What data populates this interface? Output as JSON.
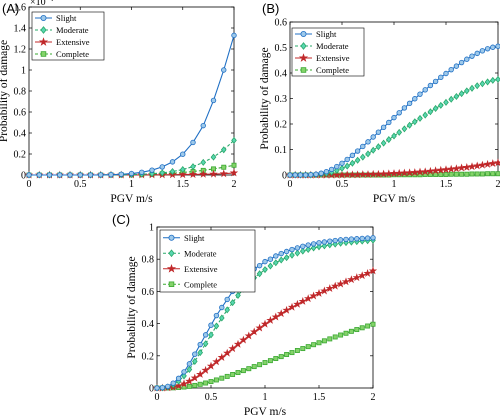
{
  "chart_data": [
    {
      "panel": "(A)",
      "type": "line",
      "xlabel": "PGV  m/s",
      "ylabel": "Probability of damage",
      "xlim": [
        0,
        2
      ],
      "ylim": [
        0,
        1.6
      ],
      "y_multiplier": "×10",
      "y_multiplier_exp": "-4",
      "xticks": [
        "0",
        "0.5",
        "1",
        "1.5",
        "2"
      ],
      "yticks": [
        "0",
        "0.2",
        "0.4",
        "0.6",
        "0.8",
        "1",
        "1.2",
        "1.4",
        "1.6"
      ],
      "x": [
        0,
        0.1,
        0.2,
        0.3,
        0.4,
        0.5,
        0.6,
        0.7,
        0.8,
        0.9,
        1.0,
        1.1,
        1.2,
        1.3,
        1.4,
        1.5,
        1.6,
        1.7,
        1.8,
        1.9,
        2.0
      ],
      "series": [
        {
          "name": "Slight",
          "marker": "circle",
          "color": "#1f6fc4",
          "fill": "#9ec9ea",
          "values": [
            0,
            0,
            0,
            0,
            0,
            0,
            0,
            0.001,
            0.003,
            0.007,
            0.014,
            0.026,
            0.046,
            0.077,
            0.125,
            0.198,
            0.31,
            0.47,
            0.71,
            1.0,
            1.33
          ]
        },
        {
          "name": "Moderate",
          "marker": "diamond",
          "color": "#2aa86a",
          "fill": "#58d6b0",
          "values": [
            0,
            0,
            0,
            0,
            0,
            0,
            0,
            0,
            0.001,
            0.002,
            0.004,
            0.007,
            0.012,
            0.02,
            0.033,
            0.052,
            0.08,
            0.12,
            0.17,
            0.24,
            0.33
          ]
        },
        {
          "name": "Extensive",
          "marker": "star",
          "color": "#c0282a",
          "fill": "#c0282a",
          "values": [
            0,
            0,
            0,
            0,
            0,
            0,
            0,
            0,
            0,
            0,
            0.001,
            0.001,
            0.002,
            0.002,
            0.003,
            0.004,
            0.005,
            0.007,
            0.009,
            0.012,
            0.02
          ]
        },
        {
          "name": "Complete",
          "marker": "square",
          "color": "#3aa832",
          "fill": "#84d36a",
          "values": [
            0,
            0,
            0,
            0,
            0,
            0,
            0,
            0,
            0.001,
            0.002,
            0.003,
            0.005,
            0.008,
            0.012,
            0.017,
            0.024,
            0.033,
            0.044,
            0.058,
            0.074,
            0.093
          ]
        }
      ]
    },
    {
      "panel": "(B)",
      "type": "line",
      "xlabel": "PGV  m/s",
      "ylabel": "Probability of damage",
      "xlim": [
        0,
        2
      ],
      "ylim": [
        0,
        0.6
      ],
      "xticks": [
        "0",
        "0.5",
        "1",
        "1.5",
        "2"
      ],
      "yticks": [
        "0",
        "0.1",
        "0.2",
        "0.3",
        "0.4",
        "0.5",
        "0.6"
      ],
      "x": [
        0,
        0.05,
        0.1,
        0.15,
        0.2,
        0.25,
        0.3,
        0.35,
        0.4,
        0.45,
        0.5,
        0.55,
        0.6,
        0.65,
        0.7,
        0.75,
        0.8,
        0.85,
        0.9,
        0.95,
        1.0,
        1.05,
        1.1,
        1.15,
        1.2,
        1.25,
        1.3,
        1.35,
        1.4,
        1.45,
        1.5,
        1.55,
        1.6,
        1.65,
        1.7,
        1.75,
        1.8,
        1.85,
        1.9,
        1.95,
        2.0
      ],
      "series": [
        {
          "name": "Slight",
          "marker": "circle",
          "color": "#1f6fc4",
          "fill": "#9ec9ea",
          "values": [
            0,
            0,
            0,
            0,
            0.001,
            0.003,
            0.007,
            0.013,
            0.022,
            0.033,
            0.046,
            0.061,
            0.077,
            0.094,
            0.112,
            0.13,
            0.149,
            0.168,
            0.187,
            0.206,
            0.225,
            0.244,
            0.263,
            0.281,
            0.299,
            0.317,
            0.334,
            0.351,
            0.367,
            0.383,
            0.398,
            0.413,
            0.427,
            0.441,
            0.454,
            0.466,
            0.477,
            0.487,
            0.495,
            0.501,
            0.505
          ]
        },
        {
          "name": "Moderate",
          "marker": "diamond",
          "color": "#2aa86a",
          "fill": "#58d6b0",
          "values": [
            0,
            0,
            0,
            0,
            0,
            0.001,
            0.003,
            0.006,
            0.011,
            0.018,
            0.026,
            0.035,
            0.046,
            0.058,
            0.07,
            0.083,
            0.097,
            0.111,
            0.125,
            0.139,
            0.153,
            0.167,
            0.181,
            0.195,
            0.209,
            0.222,
            0.235,
            0.248,
            0.261,
            0.273,
            0.285,
            0.297,
            0.308,
            0.319,
            0.33,
            0.34,
            0.35,
            0.358,
            0.365,
            0.371,
            0.375
          ]
        },
        {
          "name": "Extensive",
          "marker": "star",
          "color": "#c0282a",
          "fill": "#c0282a",
          "values": [
            0,
            0,
            0,
            0,
            0,
            0,
            0,
            0,
            0,
            0,
            0,
            0.001,
            0.001,
            0.001,
            0.002,
            0.002,
            0.003,
            0.003,
            0.004,
            0.005,
            0.006,
            0.007,
            0.008,
            0.009,
            0.01,
            0.012,
            0.013,
            0.015,
            0.017,
            0.019,
            0.021,
            0.023,
            0.025,
            0.028,
            0.03,
            0.033,
            0.036,
            0.039,
            0.042,
            0.045,
            0.048
          ]
        },
        {
          "name": "Complete",
          "marker": "square",
          "color": "#3aa832",
          "fill": "#84d36a",
          "values": [
            0,
            0,
            0,
            0,
            0,
            0,
            0,
            0,
            0,
            0,
            0,
            0,
            0,
            0,
            0,
            0,
            0,
            0,
            0,
            0,
            0.001,
            0.001,
            0.001,
            0.001,
            0.001,
            0.001,
            0.002,
            0.002,
            0.002,
            0.002,
            0.002,
            0.003,
            0.003,
            0.003,
            0.003,
            0.004,
            0.004,
            0.004,
            0.005,
            0.005,
            0.005
          ]
        }
      ]
    },
    {
      "panel": "(C)",
      "type": "line",
      "xlabel": "PGV  m/s",
      "ylabel": "Probability of damage",
      "xlim": [
        0,
        2
      ],
      "ylim": [
        0,
        1
      ],
      "xticks": [
        "0",
        "0.5",
        "1",
        "1.5",
        "2"
      ],
      "yticks": [
        "0",
        "0.2",
        "0.4",
        "0.6",
        "0.8",
        "1"
      ],
      "x": [
        0,
        0.05,
        0.1,
        0.15,
        0.2,
        0.25,
        0.3,
        0.35,
        0.4,
        0.45,
        0.5,
        0.55,
        0.6,
        0.65,
        0.7,
        0.75,
        0.8,
        0.85,
        0.9,
        0.95,
        1.0,
        1.05,
        1.1,
        1.15,
        1.2,
        1.25,
        1.3,
        1.35,
        1.4,
        1.45,
        1.5,
        1.55,
        1.6,
        1.65,
        1.7,
        1.75,
        1.8,
        1.85,
        1.9,
        1.95,
        2.0
      ],
      "series": [
        {
          "name": "Slight",
          "marker": "circle",
          "color": "#1f6fc4",
          "fill": "#9ec9ea",
          "values": [
            0,
            0.002,
            0.01,
            0.03,
            0.06,
            0.1,
            0.15,
            0.21,
            0.27,
            0.33,
            0.39,
            0.45,
            0.5,
            0.55,
            0.6,
            0.64,
            0.68,
            0.71,
            0.74,
            0.76,
            0.785,
            0.8,
            0.82,
            0.835,
            0.848,
            0.86,
            0.87,
            0.88,
            0.888,
            0.895,
            0.902,
            0.907,
            0.912,
            0.916,
            0.92,
            0.923,
            0.925,
            0.927,
            0.929,
            0.931,
            0.933
          ]
        },
        {
          "name": "Moderate",
          "marker": "diamond",
          "color": "#2aa86a",
          "fill": "#58d6b0",
          "values": [
            0,
            0.001,
            0.006,
            0.02,
            0.042,
            0.075,
            0.115,
            0.165,
            0.22,
            0.275,
            0.33,
            0.385,
            0.435,
            0.485,
            0.53,
            0.575,
            0.615,
            0.65,
            0.685,
            0.71,
            0.735,
            0.758,
            0.778,
            0.795,
            0.81,
            0.825,
            0.838,
            0.85,
            0.86,
            0.87,
            0.877,
            0.883,
            0.889,
            0.894,
            0.899,
            0.903,
            0.906,
            0.909,
            0.912,
            0.915,
            0.918
          ]
        },
        {
          "name": "Extensive",
          "marker": "star",
          "color": "#c0282a",
          "fill": "#c0282a",
          "values": [
            0,
            0,
            0.002,
            0.006,
            0.014,
            0.026,
            0.042,
            0.062,
            0.085,
            0.11,
            0.136,
            0.163,
            0.19,
            0.217,
            0.245,
            0.272,
            0.298,
            0.324,
            0.349,
            0.373,
            0.397,
            0.42,
            0.441,
            0.462,
            0.483,
            0.502,
            0.52,
            0.538,
            0.555,
            0.572,
            0.588,
            0.603,
            0.618,
            0.633,
            0.646,
            0.66,
            0.673,
            0.686,
            0.698,
            0.712,
            0.728
          ]
        },
        {
          "name": "Complete",
          "marker": "square",
          "color": "#3aa832",
          "fill": "#84d36a",
          "values": [
            0,
            0,
            0,
            0.001,
            0.003,
            0.006,
            0.01,
            0.016,
            0.023,
            0.031,
            0.04,
            0.05,
            0.061,
            0.072,
            0.084,
            0.096,
            0.108,
            0.12,
            0.133,
            0.145,
            0.158,
            0.17,
            0.183,
            0.195,
            0.208,
            0.22,
            0.233,
            0.245,
            0.257,
            0.269,
            0.281,
            0.293,
            0.305,
            0.317,
            0.329,
            0.34,
            0.352,
            0.363,
            0.374,
            0.385,
            0.396
          ]
        }
      ]
    }
  ]
}
